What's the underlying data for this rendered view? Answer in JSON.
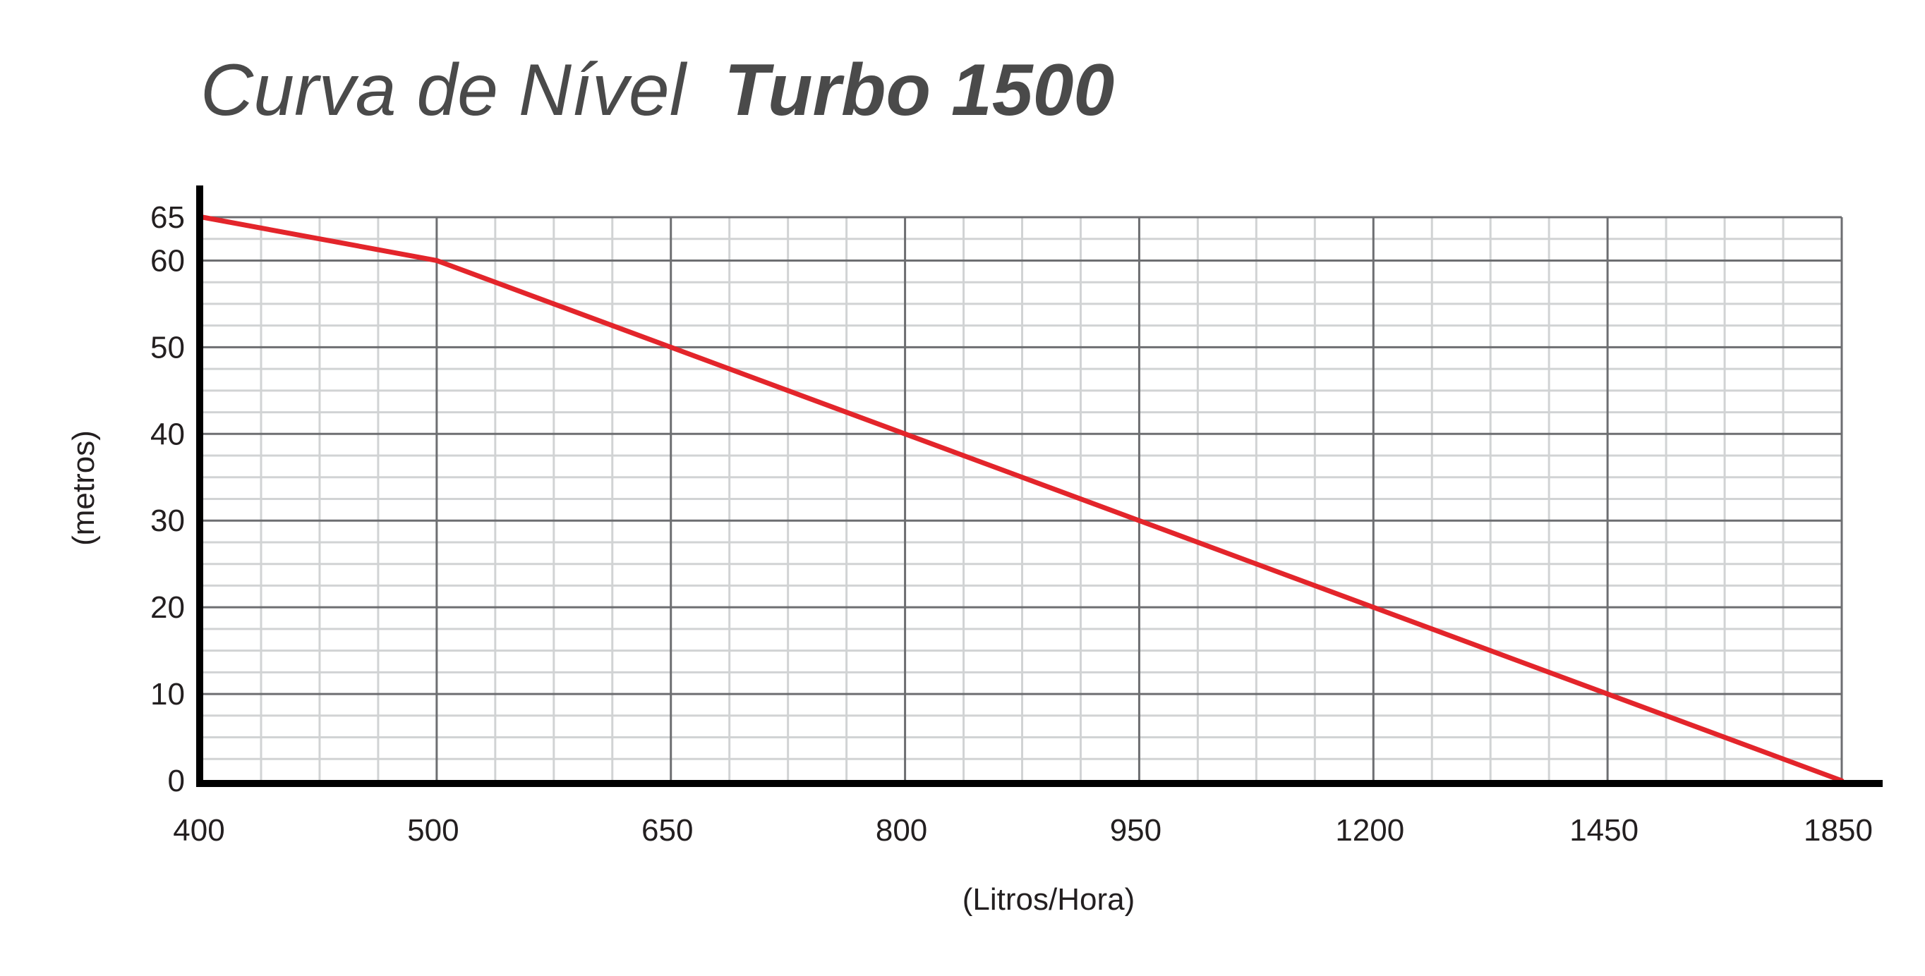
{
  "title": {
    "prefix": "Curva de Nível",
    "product": "Turbo 1500"
  },
  "colors": {
    "series": "#e3252b",
    "axis": "#000000",
    "major_grid": "#6d6e71",
    "minor_grid": "#d1d3d4",
    "text": "#231f20",
    "title": "#4a4a4a"
  },
  "chart_data": {
    "type": "line",
    "title": "Curva de Nível Turbo 1500",
    "xlabel": "(Litros/Hora)",
    "ylabel": "(metros)",
    "x_tick_labels": [
      "400",
      "500",
      "650",
      "800",
      "950",
      "1200",
      "1450",
      "1850"
    ],
    "y_tick_labels": [
      "0",
      "10",
      "20",
      "30",
      "40",
      "50",
      "60",
      "65"
    ],
    "y_ticks": [
      0,
      10,
      20,
      30,
      40,
      50,
      60,
      65
    ],
    "ylim": [
      0,
      65
    ],
    "x_scale": "categorical (equally spaced tick labels)",
    "grid": true,
    "series": [
      {
        "x": [
          "400",
          "500",
          "650",
          "800",
          "950",
          "1200",
          "1450",
          "1850"
        ],
        "values": [
          65,
          60,
          50,
          40,
          30,
          20,
          10,
          0
        ]
      }
    ]
  }
}
